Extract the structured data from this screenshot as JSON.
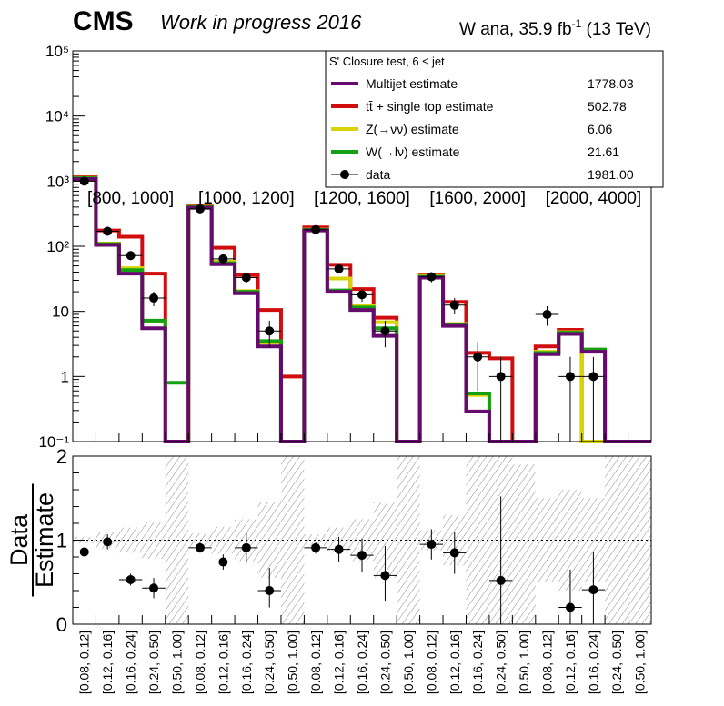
{
  "header": {
    "experiment": "CMS",
    "status": "Work in progress 2016",
    "lumi_prefix": "W ana, 35.9 fb",
    "lumi_exp": "-1",
    "lumi_suffix": " (13 TeV)"
  },
  "legend": {
    "title": "S' Closure test, 6 ≤ jet",
    "entries": [
      {
        "label": "Multijet estimate",
        "value": "1778.03",
        "color": "#660a6e"
      },
      {
        "label": "tt̄ + single top estimate",
        "value": "502.78",
        "color": "#d10d0d"
      },
      {
        "label": "Z(→νν) estimate",
        "value": "6.06",
        "color": "#d9d400"
      },
      {
        "label": "W(→lν) estimate",
        "value": "21.61",
        "color": "#13a013"
      },
      {
        "label": "data",
        "value": "1981.00",
        "color": "#000000"
      }
    ]
  },
  "chart_data": {
    "type": "bar",
    "note_scale": "log",
    "ylim": [
      0.1,
      100000
    ],
    "y_tick_labels": [
      "10⁻¹",
      "1",
      "10",
      "10²",
      "10³",
      "10⁴",
      "10⁵"
    ],
    "y_tick_values": [
      0.1,
      1,
      10,
      100,
      1000,
      10000,
      100000
    ],
    "group_labels": [
      "[800, 1000]",
      "[1000, 1200]",
      "[1200, 1600]",
      "[1600, 2000]",
      "[2000, 4000]"
    ],
    "categories": [
      "[0.08, 0.12]",
      "[0.12, 0.16]",
      "[0.16, 0.24]",
      "[0.24, 0.50]",
      "[0.50, 1.00]",
      "[0.08, 0.12]",
      "[0.12, 0.16]",
      "[0.16, 0.24]",
      "[0.24, 0.50]",
      "[0.50, 1.00]",
      "[0.08, 0.12]",
      "[0.12, 0.16]",
      "[0.16, 0.24]",
      "[0.24, 0.50]",
      "[0.50, 1.00]",
      "[0.08, 0.12]",
      "[0.12, 0.16]",
      "[0.16, 0.24]",
      "[0.24, 0.50]",
      "[0.50, 1.00]",
      "[0.08, 0.12]",
      "[0.12, 0.16]",
      "[0.16, 0.24]",
      "[0.24, 0.50]",
      "[0.50, 1.00]"
    ],
    "series": [
      {
        "name": "tt̄ + single top estimate",
        "color": "#d10d0d",
        "values": [
          1150,
          175,
          140,
          38,
          0.1,
          420,
          95,
          36,
          10.5,
          1.0,
          195,
          52,
          22,
          8.0,
          0.1,
          37,
          14,
          2.3,
          1.9,
          0.1,
          2.9,
          5.2,
          0.1,
          0.1,
          0.1
        ]
      },
      {
        "name": "Z(→νν) estimate",
        "color": "#d9d400",
        "values": [
          1120,
          110,
          46,
          7,
          0.1,
          405,
          58,
          20.5,
          3.3,
          0.1,
          180,
          32,
          12,
          6.8,
          0.1,
          35,
          6.4,
          0.52,
          0.1,
          0.1,
          2.4,
          4.8,
          0.1,
          0.1,
          0.1
        ]
      },
      {
        "name": "W(→lν) estimate",
        "color": "#13a013",
        "values": [
          1110,
          108,
          43,
          7.2,
          0.8,
          400,
          55,
          20,
          3.5,
          0.1,
          178,
          21,
          11.5,
          5.5,
          0.1,
          34,
          6.3,
          0.55,
          0.1,
          0.1,
          2.3,
          4.7,
          2.6,
          0.1,
          0.1
        ]
      },
      {
        "name": "Multijet estimate",
        "color": "#660a6e",
        "values": [
          1080,
          105,
          38,
          5.5,
          0.1,
          390,
          53,
          19,
          2.9,
          0.1,
          175,
          20,
          10.5,
          4.2,
          0.1,
          33,
          6.0,
          0.29,
          0.1,
          0.1,
          2.2,
          4.5,
          2.4,
          0.1,
          0.1
        ]
      }
    ],
    "data_points": [
      1000,
      170,
      72,
      16,
      null,
      375,
      64,
      33,
      5,
      null,
      180,
      45,
      18,
      5,
      null,
      34,
      12.5,
      2,
      1,
      null,
      9,
      1,
      1,
      null,
      null
    ],
    "data_errors_low": [
      30,
      13,
      8,
      4,
      null,
      19,
      8,
      6,
      2.2,
      null,
      13,
      7,
      4,
      2.2,
      null,
      6,
      3.5,
      1.4,
      1.0,
      null,
      3,
      1.0,
      1.0,
      null,
      null
    ],
    "data_errors_high": [
      30,
      13,
      8,
      4,
      null,
      19,
      8,
      6,
      2.2,
      null,
      13,
      7,
      4,
      2.2,
      null,
      6,
      3.5,
      1.4,
      1.0,
      null,
      3,
      1.0,
      1.0,
      null,
      null
    ],
    "ratio": {
      "ylabel_num": "Data",
      "ylabel_den": "Estimate",
      "ylim": [
        0,
        2
      ],
      "y_tick_labels": [
        "0",
        "1",
        "2"
      ],
      "y_tick_values": [
        0,
        1,
        2
      ],
      "values": [
        0.86,
        0.98,
        0.53,
        0.43,
        null,
        0.91,
        0.74,
        0.91,
        0.4,
        null,
        0.91,
        0.89,
        0.82,
        0.58,
        null,
        0.95,
        0.85,
        null,
        0.52,
        null,
        null,
        0.2,
        0.41,
        null,
        null
      ],
      "err_low": [
        0.04,
        0.09,
        0.07,
        0.12,
        null,
        0.06,
        0.09,
        0.18,
        0.2,
        null,
        0.07,
        0.15,
        0.2,
        0.3,
        null,
        0.18,
        0.25,
        null,
        0.52,
        null,
        null,
        0.2,
        0.41,
        null,
        null
      ],
      "err_high": [
        0.04,
        0.09,
        0.07,
        0.12,
        null,
        0.06,
        0.09,
        0.18,
        0.27,
        null,
        0.07,
        0.15,
        0.2,
        0.35,
        null,
        0.18,
        0.25,
        null,
        1.0,
        null,
        null,
        0.45,
        0.45,
        null,
        null
      ],
      "band_low": [
        0.96,
        0.9,
        0.85,
        0.78,
        0,
        0.92,
        0.84,
        0.75,
        0.55,
        0,
        0.93,
        0.85,
        0.75,
        0.55,
        0,
        0.88,
        0.7,
        0,
        0,
        0,
        0.5,
        0.4,
        0.5,
        0,
        0
      ],
      "band_high": [
        1.04,
        1.1,
        1.15,
        1.22,
        2,
        1.08,
        1.16,
        1.25,
        1.45,
        2,
        1.07,
        1.15,
        1.25,
        1.45,
        2,
        1.12,
        1.3,
        2,
        2,
        1.9,
        1.5,
        1.6,
        1.5,
        2,
        2
      ]
    }
  }
}
